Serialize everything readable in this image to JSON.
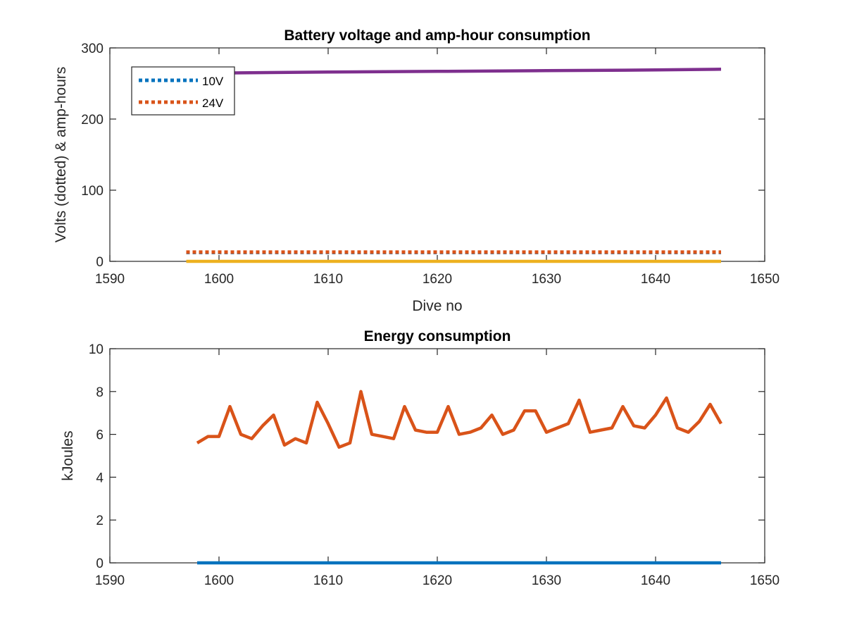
{
  "chart_data": [
    {
      "type": "line",
      "title": "Battery voltage and amp-hour consumption",
      "xlabel": "Dive no",
      "ylabel": "Volts (dotted) & amp-hours",
      "xlim": [
        1590,
        1650
      ],
      "ylim": [
        0,
        300
      ],
      "xticks": [
        1590,
        1600,
        1610,
        1620,
        1630,
        1640,
        1650
      ],
      "yticks": [
        0,
        100,
        200,
        300
      ],
      "grid": false,
      "legend_position": "top-left",
      "series": [
        {
          "name": "10V",
          "color": "#0072BD",
          "style": "dotted",
          "in_legend": true,
          "x": [
            1597,
            1646
          ],
          "y": [
            12.5,
            12.5
          ]
        },
        {
          "name": "24V",
          "color": "#D95319",
          "style": "dotted",
          "in_legend": true,
          "x": [
            1597,
            1646
          ],
          "y": [
            13,
            13
          ]
        },
        {
          "color": "#EDB120",
          "style": "solid",
          "in_legend": false,
          "x": [
            1597,
            1646
          ],
          "y": [
            0,
            0
          ]
        },
        {
          "color": "#7E2F8E",
          "style": "solid",
          "in_legend": false,
          "x": [
            1597,
            1602,
            1610,
            1620,
            1630,
            1640,
            1646
          ],
          "y": [
            264,
            265,
            266,
            267,
            268,
            269,
            270
          ]
        }
      ]
    },
    {
      "type": "line",
      "title": "Energy consumption",
      "xlabel": "",
      "ylabel": "kJoules",
      "xlim": [
        1590,
        1650
      ],
      "ylim": [
        0,
        10
      ],
      "xticks": [
        1590,
        1600,
        1610,
        1620,
        1630,
        1640,
        1650
      ],
      "yticks": [
        0,
        2,
        4,
        6,
        8,
        10
      ],
      "grid": false,
      "series": [
        {
          "color": "#D95319",
          "style": "solid",
          "x": [
            1598,
            1599,
            1600,
            1601,
            1602,
            1603,
            1604,
            1605,
            1606,
            1607,
            1608,
            1609,
            1610,
            1611,
            1612,
            1613,
            1614,
            1615,
            1616,
            1617,
            1618,
            1619,
            1620,
            1621,
            1622,
            1623,
            1624,
            1625,
            1626,
            1627,
            1628,
            1629,
            1630,
            1631,
            1632,
            1633,
            1634,
            1635,
            1636,
            1637,
            1638,
            1639,
            1640,
            1641,
            1642,
            1643,
            1644,
            1645,
            1646
          ],
          "y": [
            5.6,
            5.9,
            5.9,
            7.3,
            6.0,
            5.8,
            6.4,
            6.9,
            5.5,
            5.8,
            5.6,
            7.5,
            6.5,
            5.4,
            5.6,
            8.0,
            6.0,
            5.9,
            5.8,
            7.3,
            6.2,
            6.1,
            6.1,
            7.3,
            6.0,
            6.1,
            6.3,
            6.9,
            6.0,
            6.2,
            7.1,
            7.1,
            6.1,
            6.3,
            6.5,
            7.6,
            6.1,
            6.2,
            6.3,
            7.3,
            6.4,
            6.3,
            6.9,
            7.7,
            6.3,
            6.1,
            6.6,
            7.4,
            6.5
          ]
        },
        {
          "color": "#0072BD",
          "style": "solid",
          "x": [
            1598,
            1646
          ],
          "y": [
            0,
            0
          ]
        }
      ]
    }
  ]
}
